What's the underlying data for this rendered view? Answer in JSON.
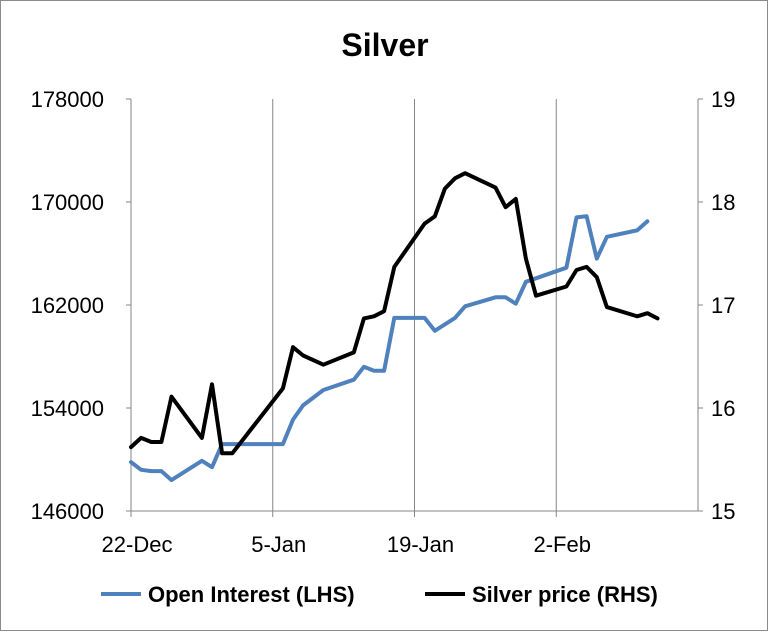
{
  "chart_data": {
    "type": "line",
    "title": "Silver",
    "xlabel": "",
    "ylabel_left": "",
    "ylabel_right": "",
    "x_ticks": [
      "22-Dec",
      "5-Jan",
      "19-Jan",
      "2-Feb"
    ],
    "y_left_ticks": [
      "146000",
      "154000",
      "162000",
      "170000",
      "178000"
    ],
    "y_right_ticks": [
      "15",
      "16",
      "17",
      "18",
      "19"
    ],
    "y_left_lim": [
      146000,
      178000
    ],
    "y_right_lim": [
      15,
      19
    ],
    "grid": "vertical",
    "legend_position": "bottom",
    "series": [
      {
        "name": "Open Interest (LHS)",
        "axis": "left",
        "color": "#4f81bd",
        "points": [
          [
            0,
            149800
          ],
          [
            1,
            149200
          ],
          [
            2,
            149100
          ],
          [
            3,
            149100
          ],
          [
            4,
            148400
          ],
          [
            7,
            149900
          ],
          [
            8,
            149400
          ],
          [
            9,
            151200
          ],
          [
            15,
            151200
          ],
          [
            16,
            153100
          ],
          [
            17,
            154200
          ],
          [
            19,
            155400
          ],
          [
            22,
            156200
          ],
          [
            23,
            157200
          ],
          [
            24,
            156900
          ],
          [
            25,
            156900
          ],
          [
            26,
            161000
          ],
          [
            29,
            161000
          ],
          [
            30,
            160000
          ],
          [
            32,
            161000
          ],
          [
            33,
            161900
          ],
          [
            36,
            162600
          ],
          [
            37,
            162600
          ],
          [
            38,
            162100
          ],
          [
            39,
            163800
          ],
          [
            43,
            164900
          ],
          [
            44,
            168800
          ],
          [
            45,
            168900
          ],
          [
            46,
            165600
          ],
          [
            47,
            167300
          ],
          [
            50,
            167800
          ],
          [
            51,
            168500
          ]
        ]
      },
      {
        "name": "Silver price (RHS)",
        "axis": "right",
        "color": "#000000",
        "points": [
          [
            0,
            15.62
          ],
          [
            1,
            15.71
          ],
          [
            2,
            15.67
          ],
          [
            3,
            15.67
          ],
          [
            4,
            16.11
          ],
          [
            7,
            15.71
          ],
          [
            8,
            16.23
          ],
          [
            9,
            15.56
          ],
          [
            10,
            15.56
          ],
          [
            15,
            16.19
          ],
          [
            16,
            16.59
          ],
          [
            17,
            16.51
          ],
          [
            19,
            16.42
          ],
          [
            22,
            16.54
          ],
          [
            23,
            16.87
          ],
          [
            24,
            16.89
          ],
          [
            25,
            16.94
          ],
          [
            26,
            17.37
          ],
          [
            29,
            17.79
          ],
          [
            30,
            17.86
          ],
          [
            31,
            18.13
          ],
          [
            32,
            18.23
          ],
          [
            33,
            18.28
          ],
          [
            36,
            18.14
          ],
          [
            37,
            17.95
          ],
          [
            38,
            18.03
          ],
          [
            39,
            17.45
          ],
          [
            40,
            17.09
          ],
          [
            43,
            17.18
          ],
          [
            44,
            17.34
          ],
          [
            45,
            17.37
          ],
          [
            46,
            17.27
          ],
          [
            47,
            16.98
          ],
          [
            50,
            16.89
          ],
          [
            51,
            16.92
          ],
          [
            52,
            16.87
          ]
        ]
      }
    ],
    "x_tick_positions": [
      0,
      14,
      28,
      42
    ],
    "x_lim": [
      0,
      56
    ]
  }
}
